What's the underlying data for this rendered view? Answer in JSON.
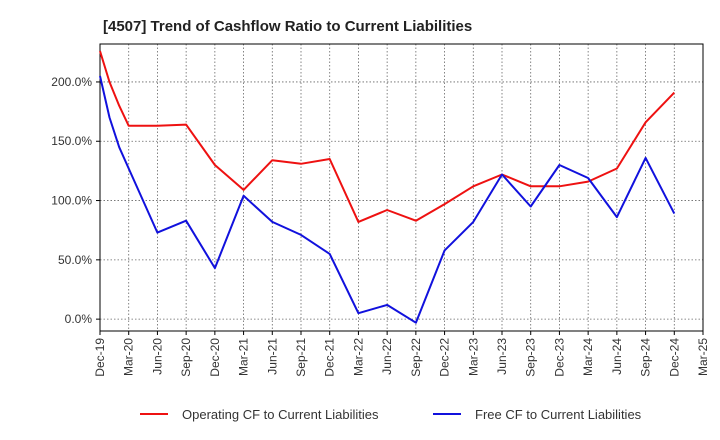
{
  "chart_data": {
    "type": "line",
    "title": "[4507]  Trend of Cashflow Ratio to Current Liabilities",
    "xlabel": "",
    "ylabel": "",
    "categories": [
      "Dec-19",
      "Mar-20",
      "Jun-20",
      "Sep-20",
      "Dec-20",
      "Mar-21",
      "Jun-21",
      "Sep-21",
      "Dec-21",
      "Mar-22",
      "Jun-22",
      "Sep-22",
      "Dec-22",
      "Mar-23",
      "Jun-23",
      "Sep-23",
      "Dec-23",
      "Mar-24",
      "Jun-24",
      "Sep-24",
      "Dec-24",
      "Mar-25"
    ],
    "yticks": [
      0,
      50,
      100,
      150,
      200
    ],
    "ytick_labels": [
      "0.0%",
      "50.0%",
      "100.0%",
      "150.0%",
      "200.0%"
    ],
    "ylim": [
      -10,
      232
    ],
    "grid": true,
    "legend_position": "bottom",
    "series": [
      {
        "name": "Operating CF to Current Liabilities",
        "color": "#ee1111",
        "x": [
          0,
          0.33,
          0.67,
          1,
          2,
          3,
          4,
          5,
          6,
          7,
          8,
          9,
          10,
          11,
          12,
          13,
          14,
          15,
          16,
          17,
          18,
          19,
          20
        ],
        "values": [
          226,
          200,
          180,
          163,
          163,
          164,
          130,
          109,
          134,
          131,
          135,
          82,
          92,
          83,
          97,
          112,
          122,
          112,
          112,
          116,
          127,
          166,
          191
        ]
      },
      {
        "name": "Free CF to Current Liabilities",
        "color": "#1111dd",
        "x": [
          0,
          0.33,
          0.67,
          1,
          2,
          3,
          4,
          5,
          6,
          7,
          8,
          9,
          10,
          11,
          12,
          13,
          14,
          15,
          16,
          17,
          18,
          19,
          20
        ],
        "values": [
          205,
          170,
          145,
          127,
          73,
          83,
          43,
          104,
          82,
          71,
          55,
          5,
          12,
          -3,
          58,
          82,
          122,
          95,
          130,
          119,
          86,
          136,
          89
        ]
      }
    ]
  }
}
